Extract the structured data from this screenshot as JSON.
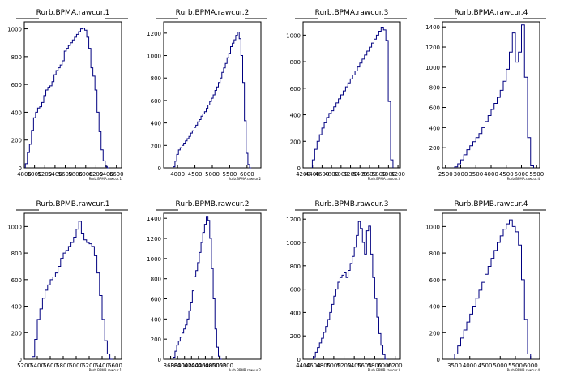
{
  "colors": {
    "line": "#000080",
    "axis": "#000000",
    "background": "#ffffff"
  },
  "chart_data": [
    {
      "type": "histogram",
      "title": "Rurb.BPMA.rawcur.1",
      "xlabel": "Rurb.BPMA.rawcur.1",
      "xlim": [
        4800,
        6700
      ],
      "ylim": [
        0,
        1050
      ],
      "xticks": [
        4800,
        5000,
        5200,
        5400,
        5600,
        5800,
        6000,
        6200,
        6400,
        6600
      ],
      "xtick_labels": [
        "4800",
        "5000",
        "5200",
        "5400",
        "5600",
        "5800",
        "6000",
        "6200",
        "6400",
        "6600"
      ],
      "yticks": [
        0,
        200,
        400,
        600,
        800,
        1000
      ],
      "x": [
        4840,
        4880,
        4920,
        4960,
        5000,
        5040,
        5080,
        5120,
        5160,
        5200,
        5240,
        5280,
        5320,
        5360,
        5400,
        5440,
        5480,
        5520,
        5560,
        5600,
        5640,
        5680,
        5720,
        5760,
        5800,
        5840,
        5880,
        5920,
        5960,
        6000,
        6040,
        6080,
        6120,
        6160,
        6200,
        6240,
        6280,
        6320,
        6360,
        6400,
        6440
      ],
      "values": [
        30,
        110,
        170,
        270,
        360,
        400,
        430,
        440,
        470,
        520,
        560,
        580,
        590,
        620,
        670,
        700,
        720,
        740,
        770,
        840,
        860,
        880,
        900,
        920,
        940,
        960,
        980,
        1000,
        1005,
        990,
        940,
        860,
        720,
        660,
        560,
        400,
        260,
        130,
        50,
        10,
        0
      ]
    },
    {
      "type": "histogram",
      "title": "Rurb.BPMA.rawcur.2",
      "xlabel": "Rurb.BPMA.rawcur.2",
      "xlim": [
        3600,
        6400
      ],
      "ylim": [
        0,
        1300
      ],
      "xticks": [
        4000,
        4500,
        5000,
        5500,
        6000
      ],
      "xtick_labels": [
        "4000",
        "4500",
        "5000",
        "5500",
        "6000"
      ],
      "yticks": [
        0,
        200,
        400,
        600,
        800,
        1000,
        1200
      ],
      "x": [
        3900,
        3950,
        4000,
        4050,
        4100,
        4150,
        4200,
        4250,
        4300,
        4350,
        4400,
        4450,
        4500,
        4550,
        4600,
        4650,
        4700,
        4750,
        4800,
        4850,
        4900,
        4950,
        5000,
        5050,
        5100,
        5150,
        5200,
        5250,
        5300,
        5350,
        5400,
        5450,
        5500,
        5550,
        5600,
        5650,
        5700,
        5750,
        5800,
        5850,
        5900,
        5950,
        6000,
        6050,
        6100
      ],
      "values": [
        10,
        60,
        120,
        160,
        180,
        200,
        220,
        240,
        260,
        280,
        310,
        330,
        360,
        380,
        410,
        430,
        460,
        480,
        500,
        530,
        560,
        590,
        620,
        650,
        690,
        720,
        760,
        800,
        850,
        890,
        930,
        980,
        1020,
        1080,
        1110,
        1140,
        1180,
        1210,
        1150,
        1000,
        760,
        420,
        130,
        30,
        0
      ]
    },
    {
      "type": "histogram",
      "title": "Rurb.BPMA.rawcur.3",
      "xlabel": "Rurb.BPMA.rawcur.3",
      "xlim": [
        4200,
        6250
      ],
      "ylim": [
        0,
        1100
      ],
      "xticks": [
        4200,
        4400,
        4600,
        4800,
        5000,
        5200,
        5400,
        5600,
        5800,
        6000,
        6200
      ],
      "xtick_labels": [
        "4200",
        "4400",
        "4600",
        "4800",
        "5000",
        "5200",
        "5400",
        "5600",
        "5800",
        "6000",
        "6200"
      ],
      "yticks": [
        0,
        200,
        400,
        600,
        800,
        1000
      ],
      "x": [
        4420,
        4470,
        4520,
        4570,
        4620,
        4670,
        4720,
        4770,
        4820,
        4870,
        4920,
        4970,
        5020,
        5070,
        5120,
        5170,
        5220,
        5270,
        5320,
        5370,
        5420,
        5470,
        5520,
        5570,
        5620,
        5670,
        5720,
        5770,
        5820,
        5870,
        5920,
        5970,
        6020,
        6070
      ],
      "values": [
        60,
        140,
        200,
        250,
        300,
        340,
        380,
        410,
        430,
        460,
        490,
        520,
        550,
        580,
        610,
        640,
        670,
        700,
        730,
        760,
        790,
        820,
        850,
        880,
        910,
        940,
        970,
        1000,
        1030,
        1060,
        1040,
        960,
        500,
        60
      ]
    },
    {
      "type": "histogram",
      "title": "Rurb.BPMA.rawcur.4",
      "xlabel": "Rurb.BPMA.rawcur.4",
      "xlim": [
        2400,
        5600
      ],
      "ylim": [
        0,
        1450
      ],
      "xticks": [
        2500,
        3000,
        3500,
        4000,
        4500,
        5000,
        5500
      ],
      "xtick_labels": [
        "2500",
        "3000",
        "3500",
        "4000",
        "4500",
        "5000",
        "5500"
      ],
      "yticks": [
        0,
        200,
        400,
        600,
        800,
        1000,
        1200,
        1400
      ],
      "x": [
        2850,
        2950,
        3050,
        3150,
        3250,
        3350,
        3450,
        3550,
        3650,
        3750,
        3850,
        3950,
        4050,
        4150,
        4250,
        4350,
        4450,
        4550,
        4650,
        4750,
        4850,
        4950,
        5050,
        5150,
        5250,
        5350
      ],
      "values": [
        10,
        40,
        80,
        130,
        180,
        220,
        260,
        300,
        340,
        400,
        460,
        520,
        580,
        640,
        700,
        770,
        860,
        980,
        1150,
        1340,
        1050,
        1150,
        1420,
        900,
        300,
        20
      ]
    },
    {
      "type": "histogram",
      "title": "Rurb.BPMB.rawcur.1",
      "xlabel": "Rurb.BPMB.rawcur.1",
      "xlim": [
        5200,
        6700
      ],
      "ylim": [
        0,
        1100
      ],
      "xticks": [
        5200,
        5400,
        5600,
        5800,
        6000,
        6200,
        6400,
        6600
      ],
      "xtick_labels": [
        "5200",
        "5400",
        "5600",
        "5800",
        "6000",
        "6200",
        "6400",
        "6600"
      ],
      "yticks": [
        0,
        200,
        400,
        600,
        800,
        1000
      ],
      "x": [
        5340,
        5380,
        5420,
        5460,
        5500,
        5540,
        5580,
        5620,
        5660,
        5700,
        5740,
        5780,
        5820,
        5860,
        5900,
        5940,
        5980,
        6020,
        6060,
        6100,
        6140,
        6180,
        6220,
        6260,
        6300,
        6340,
        6380,
        6420,
        6460,
        6500,
        6540
      ],
      "values": [
        20,
        150,
        300,
        380,
        460,
        520,
        560,
        600,
        620,
        650,
        700,
        760,
        800,
        820,
        850,
        880,
        920,
        980,
        1040,
        950,
        900,
        880,
        870,
        850,
        780,
        650,
        480,
        300,
        140,
        40,
        0
      ]
    },
    {
      "type": "histogram",
      "title": "Rurb.BPMB.rawcur.2",
      "xlabel": "Rurb.BPMB.rawcur.2",
      "xlim": [
        3400,
        6200
      ],
      "ylim": [
        0,
        1450
      ],
      "xticks": [
        3600,
        3800,
        4000,
        4200,
        4400,
        4600,
        4800,
        5000,
        5200
      ],
      "xtick_labels": [
        "3600",
        "3800",
        "4000",
        "4200",
        "4400",
        "4600",
        "4800",
        "5000",
        "5200"
      ],
      "yticks": [
        0,
        200,
        400,
        600,
        800,
        1000,
        1200,
        1400
      ],
      "x": [
        3700,
        3750,
        3800,
        3850,
        3900,
        3950,
        4000,
        4050,
        4100,
        4150,
        4200,
        4250,
        4300,
        4350,
        4400,
        4450,
        4500,
        4550,
        4600,
        4650,
        4700,
        4750,
        4800,
        4850,
        4900,
        4950,
        5000,
        5050
      ],
      "values": [
        20,
        80,
        140,
        180,
        220,
        260,
        300,
        340,
        400,
        480,
        560,
        680,
        820,
        880,
        960,
        1060,
        1160,
        1260,
        1340,
        1420,
        1380,
        1200,
        900,
        600,
        300,
        120,
        30,
        0
      ]
    },
    {
      "type": "histogram",
      "title": "Rurb.BPMB.rawcur.3",
      "xlabel": "Rurb.BPMB.rawcur.3",
      "xlim": [
        4400,
        6300
      ],
      "ylim": [
        0,
        1250
      ],
      "xticks": [
        4400,
        4600,
        4800,
        5000,
        5200,
        5400,
        5600,
        5800,
        6000,
        6200
      ],
      "xtick_labels": [
        "4400",
        "4600",
        "4800",
        "5000",
        "5200",
        "5400",
        "5600",
        "5800",
        "6000",
        "6200"
      ],
      "yticks": [
        0,
        200,
        400,
        600,
        800,
        1000,
        1200
      ],
      "x": [
        4620,
        4660,
        4700,
        4740,
        4780,
        4820,
        4860,
        4900,
        4940,
        4980,
        5020,
        5060,
        5100,
        5140,
        5180,
        5220,
        5260,
        5300,
        5340,
        5380,
        5420,
        5460,
        5500,
        5540,
        5580,
        5620,
        5660,
        5700,
        5740,
        5780,
        5820,
        5860,
        5900,
        5940,
        5980,
        6020
      ],
      "values": [
        20,
        60,
        100,
        140,
        180,
        230,
        280,
        340,
        400,
        470,
        540,
        600,
        660,
        700,
        720,
        740,
        700,
        760,
        820,
        880,
        960,
        1060,
        1180,
        1120,
        1000,
        900,
        1100,
        1140,
        900,
        700,
        520,
        360,
        220,
        120,
        40,
        0
      ]
    },
    {
      "type": "histogram",
      "title": "Rurb.BPMB.rawcur.4",
      "xlabel": "Rurb.BPMB.rawcur.4",
      "xlim": [
        3100,
        6300
      ],
      "ylim": [
        0,
        1100
      ],
      "xticks": [
        3500,
        4000,
        4500,
        5000,
        5500,
        6000
      ],
      "xtick_labels": [
        "3500",
        "4000",
        "4500",
        "5000",
        "5500",
        "6000"
      ],
      "yticks": [
        0,
        200,
        400,
        600,
        800,
        1000
      ],
      "x": [
        3550,
        3650,
        3750,
        3850,
        3950,
        4050,
        4150,
        4250,
        4350,
        4450,
        4550,
        4650,
        4750,
        4850,
        4950,
        5050,
        5150,
        5250,
        5350,
        5450,
        5550,
        5650,
        5750,
        5850,
        5950
      ],
      "values": [
        40,
        100,
        160,
        220,
        280,
        340,
        400,
        460,
        520,
        580,
        640,
        700,
        760,
        820,
        880,
        930,
        980,
        1020,
        1050,
        1000,
        960,
        860,
        600,
        300,
        40
      ]
    }
  ]
}
